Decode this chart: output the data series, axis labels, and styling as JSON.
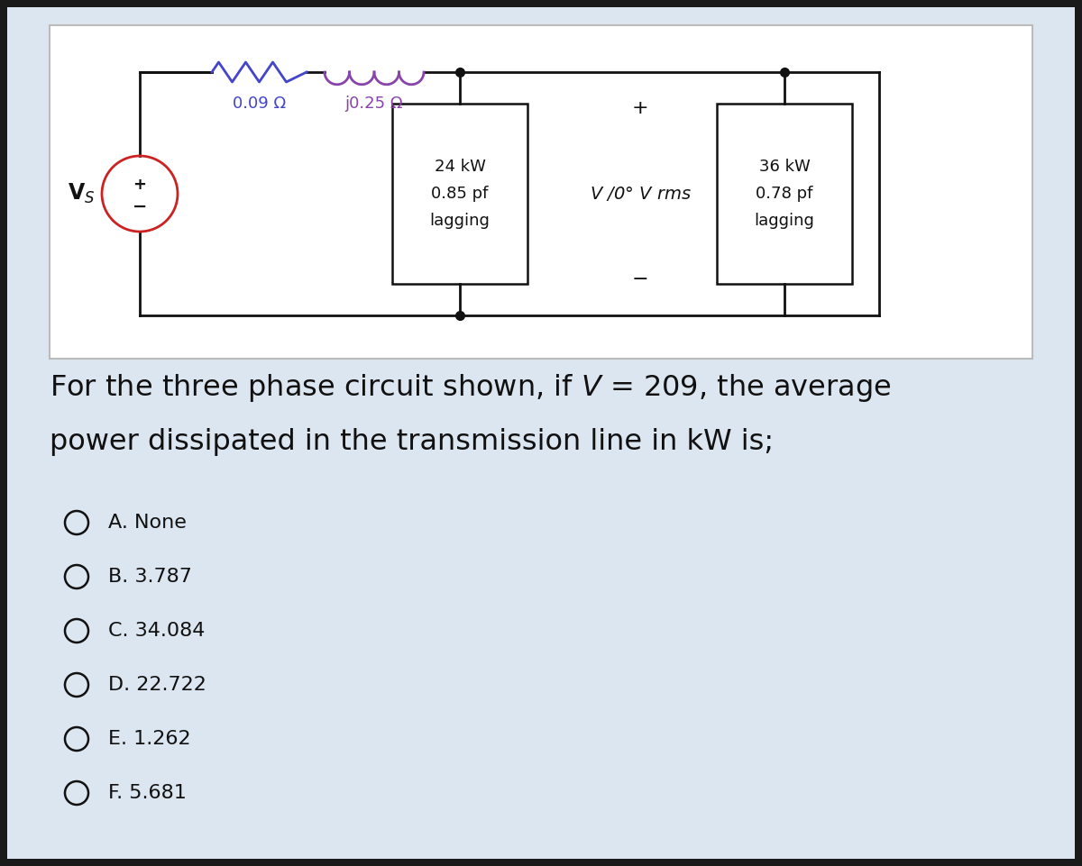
{
  "bg_outer": "#1a1a1a",
  "bg_inner": "#dce6f0",
  "text_color": "#111111",
  "title_text1": "For the three phase circuit shown, if $V$ = 209, the average",
  "title_text2": "power dissipated in the transmission line in kW is;",
  "choices": [
    "A. None",
    "B. 3.787",
    "C. 34.084",
    "D. 22.722",
    "E. 1.262",
    "F. 5.681"
  ],
  "resistor_label": "0.09 Ω",
  "inductor_label": "j0.25 Ω",
  "load1_lines": [
    "24 kW",
    "0.85 pf",
    "lagging"
  ],
  "load2_lines": [
    "36 kW",
    "0.78 pf",
    "lagging"
  ],
  "voltage_label": "V ⁀0° V rms",
  "source_label": "V",
  "source_sub": "S",
  "font_size_circuit": 13,
  "font_size_question": 23,
  "font_size_choices": 16,
  "resistor_color": "#4444cc",
  "inductor_color": "#8844aa",
  "wire_color": "#111111",
  "source_circle_color": "#cc2222"
}
